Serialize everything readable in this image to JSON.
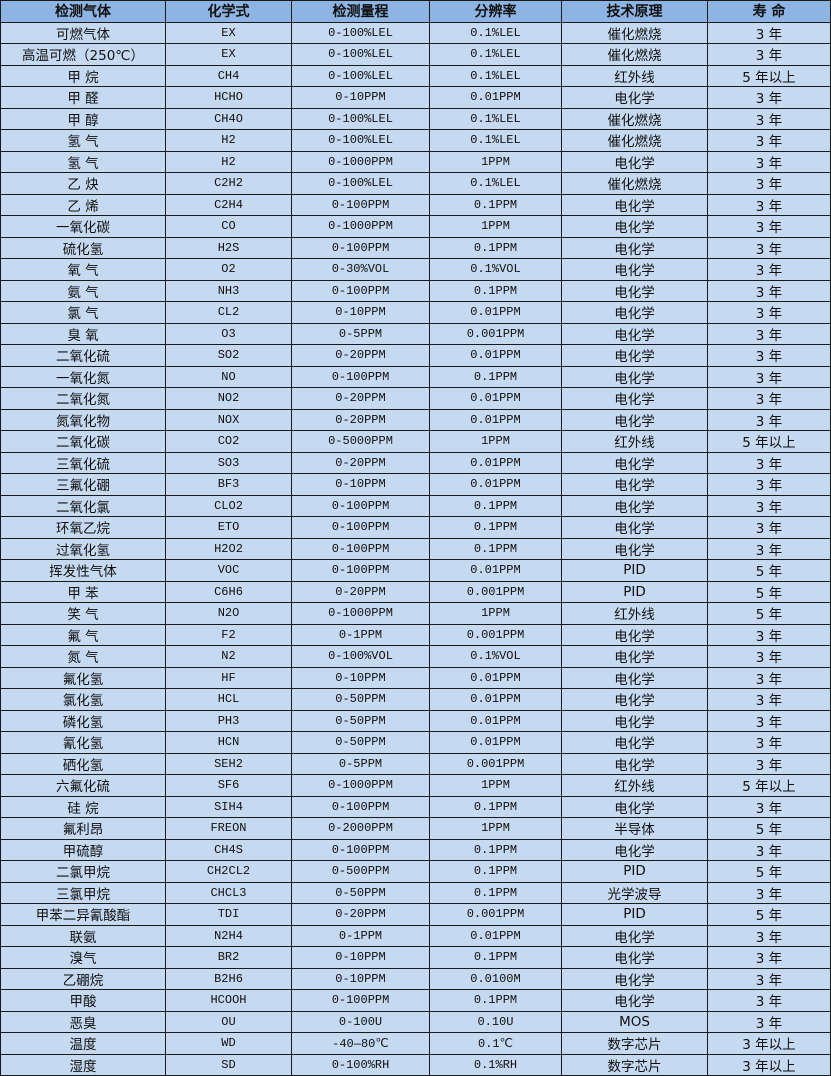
{
  "table": {
    "headers": [
      "检测气体",
      "化学式",
      "检测量程",
      "分辨率",
      "技术原理",
      "寿  命"
    ],
    "rows": [
      [
        "可燃气体",
        "EX",
        "0-100%LEL",
        "0.1%LEL",
        "催化燃烧",
        "3 年"
      ],
      [
        "高温可燃（250℃）",
        "EX",
        "0-100%LEL",
        "0.1%LEL",
        "催化燃烧",
        "3 年"
      ],
      [
        "甲 烷",
        "CH4",
        "0-100%LEL",
        "0.1%LEL",
        "红外线",
        "5 年以上"
      ],
      [
        "甲 醛",
        "HCHO",
        "0-10PPM",
        "0.01PPM",
        "电化学",
        "3 年"
      ],
      [
        "甲 醇",
        "CH4O",
        "0-100%LEL",
        "0.1%LEL",
        "催化燃烧",
        "3 年"
      ],
      [
        "氢 气",
        "H2",
        "0-100%LEL",
        "0.1%LEL",
        "催化燃烧",
        "3 年"
      ],
      [
        "氢 气",
        "H2",
        "0-1000PPM",
        "1PPM",
        "电化学",
        "3 年"
      ],
      [
        "乙 炔",
        "C2H2",
        "0-100%LEL",
        "0.1%LEL",
        "催化燃烧",
        "3 年"
      ],
      [
        "乙 烯",
        "C2H4",
        "0-100PPM",
        "0.1PPM",
        "电化学",
        "3 年"
      ],
      [
        "一氧化碳",
        "CO",
        "0-1000PPM",
        "1PPM",
        "电化学",
        "3 年"
      ],
      [
        "硫化氢",
        "H2S",
        "0-100PPM",
        "0.1PPM",
        "电化学",
        "3 年"
      ],
      [
        "氧 气",
        "O2",
        "0-30%VOL",
        "0.1%VOL",
        "电化学",
        "3 年"
      ],
      [
        "氨 气",
        "NH3",
        "0-100PPM",
        "0.1PPM",
        "电化学",
        "3 年"
      ],
      [
        "氯 气",
        "CL2",
        "0-10PPM",
        "0.01PPM",
        "电化学",
        "3 年"
      ],
      [
        "臭 氧",
        "O3",
        "0-5PPM",
        "0.001PPM",
        "电化学",
        "3 年"
      ],
      [
        "二氧化硫",
        "SO2",
        "0-20PPM",
        "0.01PPM",
        "电化学",
        "3 年"
      ],
      [
        "一氧化氮",
        "NO",
        "0-100PPM",
        "0.1PPM",
        "电化学",
        "3 年"
      ],
      [
        "二氧化氮",
        "NO2",
        "0-20PPM",
        "0.01PPM",
        "电化学",
        "3 年"
      ],
      [
        "氮氧化物",
        "NOX",
        "0-20PPM",
        "0.01PPM",
        "电化学",
        "3 年"
      ],
      [
        "二氧化碳",
        "CO2",
        "0-5000PPM",
        "1PPM",
        "红外线",
        "5 年以上"
      ],
      [
        "三氧化硫",
        "SO3",
        "0-20PPM",
        "0.01PPM",
        "电化学",
        "3 年"
      ],
      [
        "三氟化硼",
        "BF3",
        "0-10PPM",
        "0.01PPM",
        "电化学",
        "3 年"
      ],
      [
        "二氧化氯",
        "CLO2",
        "0-100PPM",
        "0.1PPM",
        "电化学",
        "3 年"
      ],
      [
        "环氧乙烷",
        "ETO",
        "0-100PPM",
        "0.1PPM",
        "电化学",
        "3 年"
      ],
      [
        "过氧化氢",
        "H2O2",
        "0-100PPM",
        "0.1PPM",
        "电化学",
        "3 年"
      ],
      [
        "挥发性气体",
        "VOC",
        "0-100PPM",
        "0.01PPM",
        "PID",
        "5 年"
      ],
      [
        "甲 苯",
        "C6H6",
        "0-20PPM",
        "0.001PPM",
        "PID",
        "5 年"
      ],
      [
        "笑 气",
        "N2O",
        "0-1000PPM",
        "1PPM",
        "红外线",
        "5 年"
      ],
      [
        "氟 气",
        "F2",
        "0-1PPM",
        "0.001PPM",
        "电化学",
        "3 年"
      ],
      [
        "氮 气",
        "N2",
        "0-100%VOL",
        "0.1%VOL",
        "电化学",
        "3 年"
      ],
      [
        "氟化氢",
        "HF",
        "0-10PPM",
        "0.01PPM",
        "电化学",
        "3 年"
      ],
      [
        "氯化氢",
        "HCL",
        "0-50PPM",
        "0.01PPM",
        "电化学",
        "3 年"
      ],
      [
        "磷化氢",
        "PH3",
        "0-50PPM",
        "0.01PPM",
        "电化学",
        "3 年"
      ],
      [
        "氰化氢",
        "HCN",
        "0-50PPM",
        "0.01PPM",
        "电化学",
        "3 年"
      ],
      [
        "硒化氢",
        "SEH2",
        "0-5PPM",
        "0.001PPM",
        "电化学",
        "3 年"
      ],
      [
        "六氟化硫",
        "SF6",
        "0-1000PPM",
        "1PPM",
        "红外线",
        "5 年以上"
      ],
      [
        "硅 烷",
        "SIH4",
        "0-100PPM",
        "0.1PPM",
        "电化学",
        "3 年"
      ],
      [
        "氟利昂",
        "FREON",
        "0-2000PPM",
        "1PPM",
        "半导体",
        "5 年"
      ],
      [
        "甲硫醇",
        "CH4S",
        "0-100PPM",
        "0.1PPM",
        "电化学",
        "3 年"
      ],
      [
        "二氯甲烷",
        "CH2CL2",
        "0-500PPM",
        "0.1PPM",
        "PID",
        "5 年"
      ],
      [
        "三氯甲烷",
        "CHCL3",
        "0-50PPM",
        "0.1PPM",
        "光学波导",
        "3 年"
      ],
      [
        "甲苯二异氰酸酯",
        "TDI",
        "0-20PPM",
        "0.001PPM",
        "PID",
        "5 年"
      ],
      [
        "联氨",
        "N2H4",
        "0-1PPM",
        "0.01PPM",
        "电化学",
        "3 年"
      ],
      [
        "溴气",
        "BR2",
        "0-10PPM",
        "0.1PPM",
        "电化学",
        "3 年"
      ],
      [
        "乙硼烷",
        "B2H6",
        "0-10PPM",
        "0.0100M",
        "电化学",
        "3 年"
      ],
      [
        "甲酸",
        "HCOOH",
        "0-100PPM",
        "0.1PPM",
        "电化学",
        "3 年"
      ],
      [
        "恶臭",
        "OU",
        "0-100U",
        "0.10U",
        "MOS",
        "3 年"
      ],
      [
        "温度",
        "WD",
        "-40—80℃",
        "0.1℃",
        "数字芯片",
        "3 年以上"
      ],
      [
        "湿度",
        "SD",
        "0-100%RH",
        "0.1%RH",
        "数字芯片",
        "3 年以上"
      ]
    ]
  },
  "colors": {
    "header_bg": "#8db4e2",
    "row_bg": "#c5d9f1",
    "border": "#1a1a1a"
  }
}
